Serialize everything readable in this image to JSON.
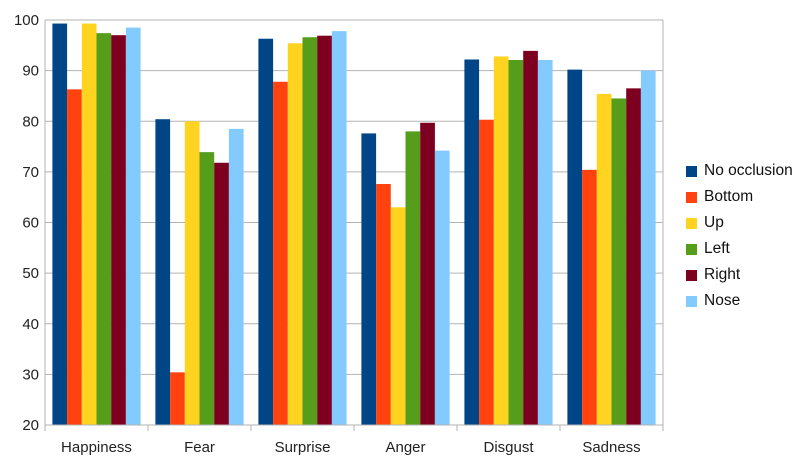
{
  "chart_data": {
    "type": "bar",
    "title": "",
    "xlabel": "",
    "ylabel": "",
    "ylim": [
      20,
      100
    ],
    "yticks": [
      20,
      30,
      40,
      50,
      60,
      70,
      80,
      90,
      100
    ],
    "grid": "horizontal",
    "legend_position": "right",
    "categories": [
      "Happiness",
      "Fear",
      "Surprise",
      "Anger",
      "Disgust",
      "Sadness"
    ],
    "series": [
      {
        "name": "No occlusion",
        "color": "#004586",
        "values": [
          99.3,
          80.4,
          96.3,
          77.6,
          92.2,
          90.2
        ]
      },
      {
        "name": "Bottom",
        "color": "#ff420e",
        "values": [
          86.3,
          30.4,
          87.8,
          67.6,
          80.3,
          70.4
        ]
      },
      {
        "name": "Up",
        "color": "#ffd320",
        "values": [
          99.3,
          80.0,
          95.4,
          63.0,
          92.8,
          85.4
        ]
      },
      {
        "name": "Left",
        "color": "#579d1c",
        "values": [
          97.4,
          73.9,
          96.6,
          78.0,
          92.1,
          84.5
        ]
      },
      {
        "name": "Right",
        "color": "#7e0021",
        "values": [
          97.0,
          71.8,
          96.9,
          79.7,
          93.9,
          86.5
        ]
      },
      {
        "name": "Nose",
        "color": "#83caff",
        "values": [
          98.5,
          78.5,
          97.8,
          74.2,
          92.1,
          90.0
        ]
      }
    ]
  }
}
